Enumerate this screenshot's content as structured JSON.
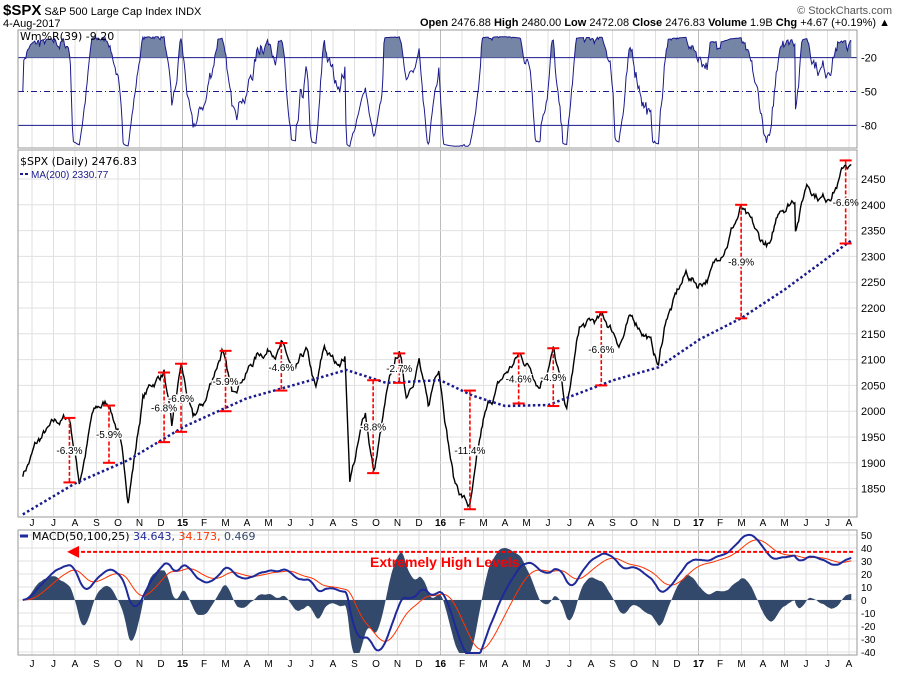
{
  "header": {
    "symbol": "$SPX",
    "name": "S&P 500 Large Cap Index",
    "exchange": "INDX",
    "date": "4-Aug-2017",
    "watermark": "© StockCharts.com",
    "open_label": "Open",
    "open": "2476.88",
    "high_label": "High",
    "high": "2480.00",
    "low_label": "Low",
    "low": "2472.08",
    "close_label": "Close",
    "close": "2476.83",
    "volume_label": "Volume",
    "volume": "1.9B",
    "chg_label": "Chg",
    "chg": "+4.67 (+0.19%)"
  },
  "colors": {
    "price": "#000000",
    "ma": "#1a1a8c",
    "annot": "#ff0000",
    "macd": "#1f2a9a",
    "signal": "#ff3300",
    "hist": "#33496b",
    "wmr_fill": "#7585a6",
    "wmr_line": "#1a1a8c"
  },
  "chart_data": [
    {
      "type": "line",
      "panel": "Williams %R",
      "legend": "Wm%R(39) -9.20",
      "period": 39,
      "last": -9.2,
      "ylim": [
        -100,
        0
      ],
      "levels": [
        -20,
        -50,
        -80
      ],
      "tick_labels": [
        "-20",
        "-50",
        "-80"
      ],
      "grid": true
    },
    {
      "type": "line",
      "panel": "price",
      "legend_price": "$SPX (Daily) 2476.83",
      "legend_ma": "MA(200) 2330.77",
      "ylim": [
        1800,
        2490
      ],
      "y_ticks": [
        1850,
        1900,
        1950,
        2000,
        2050,
        2100,
        2150,
        2200,
        2250,
        2300,
        2350,
        2400,
        2450
      ],
      "x_range": [
        "2014-05-19",
        "2017-08-04"
      ],
      "x_tick_labels": [
        "J",
        "J",
        "A",
        "S",
        "O",
        "N",
        "D",
        "15",
        "F",
        "M",
        "A",
        "M",
        "J",
        "J",
        "A",
        "S",
        "O",
        "N",
        "D",
        "16",
        "F",
        "M",
        "A",
        "M",
        "J",
        "J",
        "A",
        "S",
        "O",
        "N",
        "D",
        "17",
        "F",
        "M",
        "A",
        "M",
        "J",
        "J",
        "A"
      ],
      "grid": true,
      "price_points": [
        [
          "2014-05-19",
          1880
        ],
        [
          "2014-06-05",
          1935
        ],
        [
          "2014-06-20",
          1960
        ],
        [
          "2014-07-03",
          1980
        ],
        [
          "2014-07-24",
          1987
        ],
        [
          "2014-08-07",
          1862
        ],
        [
          "2014-08-25",
          1995
        ],
        [
          "2014-09-18",
          2011
        ],
        [
          "2014-10-01",
          1960
        ],
        [
          "2014-10-15",
          1820
        ],
        [
          "2014-11-05",
          2025
        ],
        [
          "2014-11-28",
          2070
        ],
        [
          "2014-12-05",
          2075
        ],
        [
          "2014-12-16",
          1975
        ],
        [
          "2014-12-29",
          2090
        ],
        [
          "2015-01-15",
          1995
        ],
        [
          "2015-02-02",
          2020
        ],
        [
          "2015-02-25",
          2115
        ],
        [
          "2015-03-11",
          2045
        ],
        [
          "2015-03-25",
          2060
        ],
        [
          "2015-04-15",
          2105
        ],
        [
          "2015-05-20",
          2130
        ],
        [
          "2015-06-09",
          2078
        ],
        [
          "2015-06-24",
          2120
        ],
        [
          "2015-07-08",
          2045
        ],
        [
          "2015-07-20",
          2128
        ],
        [
          "2015-08-05",
          2090
        ],
        [
          "2015-08-18",
          2100
        ],
        [
          "2015-08-25",
          1870
        ],
        [
          "2015-09-16",
          1995
        ],
        [
          "2015-09-28",
          1880
        ],
        [
          "2015-10-15",
          2025
        ],
        [
          "2015-11-03",
          2110
        ],
        [
          "2015-11-13",
          2025
        ],
        [
          "2015-12-01",
          2100
        ],
        [
          "2015-12-14",
          2015
        ],
        [
          "2015-12-29",
          2080
        ],
        [
          "2016-01-20",
          1860
        ],
        [
          "2016-02-11",
          1815
        ],
        [
          "2016-03-01",
          1980
        ],
        [
          "2016-03-20",
          2045
        ],
        [
          "2016-04-20",
          2110
        ],
        [
          "2016-05-19",
          2045
        ],
        [
          "2016-06-08",
          2120
        ],
        [
          "2016-06-27",
          2000
        ],
        [
          "2016-07-15",
          2160
        ],
        [
          "2016-08-15",
          2190
        ],
        [
          "2016-09-09",
          2125
        ],
        [
          "2016-09-22",
          2175
        ],
        [
          "2016-10-20",
          2140
        ],
        [
          "2016-11-04",
          2085
        ],
        [
          "2016-11-15",
          2180
        ],
        [
          "2016-12-13",
          2270
        ],
        [
          "2016-12-30",
          2238
        ],
        [
          "2017-01-26",
          2298
        ],
        [
          "2017-02-15",
          2350
        ],
        [
          "2017-03-01",
          2400
        ],
        [
          "2017-03-27",
          2340
        ],
        [
          "2017-04-13",
          2328
        ],
        [
          "2017-04-25",
          2390
        ],
        [
          "2017-05-16",
          2405
        ],
        [
          "2017-05-17",
          2355
        ],
        [
          "2017-06-02",
          2440
        ],
        [
          "2017-06-29",
          2410
        ],
        [
          "2017-07-10",
          2428
        ],
        [
          "2017-07-27",
          2480
        ],
        [
          "2017-08-04",
          2477
        ]
      ],
      "ma200_points": [
        [
          "2014-05-19",
          1800
        ],
        [
          "2014-08-01",
          1860
        ],
        [
          "2014-10-15",
          1905
        ],
        [
          "2015-01-02",
          1970
        ],
        [
          "2015-04-01",
          2025
        ],
        [
          "2015-07-01",
          2060
        ],
        [
          "2015-08-20",
          2080
        ],
        [
          "2015-10-15",
          2055
        ],
        [
          "2015-12-31",
          2060
        ],
        [
          "2016-02-15",
          2030
        ],
        [
          "2016-04-01",
          2010
        ],
        [
          "2016-06-01",
          2012
        ],
        [
          "2016-07-15",
          2035
        ],
        [
          "2016-09-01",
          2060
        ],
        [
          "2016-11-04",
          2085
        ],
        [
          "2017-01-02",
          2140
        ],
        [
          "2017-03-01",
          2180
        ],
        [
          "2017-05-01",
          2235
        ],
        [
          "2017-08-04",
          2331
        ]
      ],
      "annotations": [
        {
          "date": "2014-07-24",
          "top": 1987,
          "bottom": 1862,
          "label": "-6.3%"
        },
        {
          "date": "2014-09-18",
          "top": 2011,
          "bottom": 1900,
          "label": "-5.9%"
        },
        {
          "date": "2014-12-05",
          "top": 2075,
          "bottom": 1940,
          "label": "-6.8%"
        },
        {
          "date": "2014-12-29",
          "top": 2092,
          "bottom": 1960,
          "label": "-6.6%"
        },
        {
          "date": "2015-03-02",
          "top": 2117,
          "bottom": 2000,
          "label": "-5.9%"
        },
        {
          "date": "2015-05-20",
          "top": 2132,
          "bottom": 2040,
          "label": "-4.6%"
        },
        {
          "date": "2015-09-27",
          "top": 2060,
          "bottom": 1880,
          "label": "-8.8%"
        },
        {
          "date": "2015-11-03",
          "top": 2112,
          "bottom": 2055,
          "label": "-2.7%"
        },
        {
          "date": "2016-02-11",
          "top": 2040,
          "bottom": 1810,
          "label": "-11.4%"
        },
        {
          "date": "2016-04-20",
          "top": 2112,
          "bottom": 2015,
          "label": "-4.6%"
        },
        {
          "date": "2016-06-08",
          "top": 2122,
          "bottom": 2010,
          "label": "-4.9%"
        },
        {
          "date": "2016-08-15",
          "top": 2192,
          "bottom": 2050,
          "label": "-6.6%"
        },
        {
          "date": "2017-03-01",
          "top": 2400,
          "bottom": 2180,
          "label": "-8.9%"
        },
        {
          "date": "2017-07-27",
          "top": 2486,
          "bottom": 2325,
          "label": "-6.6%"
        }
      ]
    },
    {
      "type": "line",
      "panel": "MACD",
      "legend": "MACD(50,100,25)",
      "macd": "34.643,",
      "signal": "34.173,",
      "histogram": "0.469",
      "ylim": [
        -45,
        55
      ],
      "y_ticks": [
        50,
        40,
        30,
        20,
        10,
        0,
        -10,
        -20,
        -30,
        -40
      ],
      "annotation": {
        "text": "Extremely High Levels",
        "level": 37,
        "from_date": "2014-08-01",
        "to_date": "2017-08-04"
      },
      "grid": true
    }
  ]
}
